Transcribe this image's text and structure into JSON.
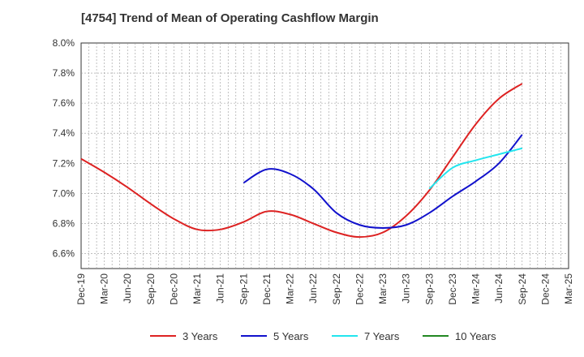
{
  "chart_data": {
    "type": "line",
    "title": "[4754]  Trend of Mean of Operating Cashflow Margin",
    "xlabel": "",
    "ylabel": "",
    "ylim": [
      6.5,
      8.0
    ],
    "y_ticks": [
      6.6,
      6.8,
      7.0,
      7.2,
      7.4,
      7.6,
      7.8,
      8.0
    ],
    "y_tick_labels": [
      "6.6%",
      "6.8%",
      "7.0%",
      "7.2%",
      "7.4%",
      "7.6%",
      "7.8%",
      "8.0%"
    ],
    "x_tick_labels": [
      "Dec-19",
      "Mar-20",
      "Jun-20",
      "Sep-20",
      "Dec-20",
      "Mar-21",
      "Jun-21",
      "Sep-21",
      "Dec-21",
      "Mar-22",
      "Jun-22",
      "Sep-22",
      "Dec-22",
      "Mar-23",
      "Jun-23",
      "Sep-23",
      "Dec-23",
      "Mar-24",
      "Jun-24",
      "Sep-24",
      "Dec-24",
      "Mar-25"
    ],
    "grid": true,
    "legend_position": "bottom",
    "series": [
      {
        "name": "3 Years",
        "color": "#dd2222",
        "start_index": 0,
        "values": [
          7.23,
          7.14,
          7.04,
          6.93,
          6.83,
          6.76,
          6.76,
          6.81,
          6.88,
          6.86,
          6.8,
          6.74,
          6.71,
          6.74,
          6.85,
          7.02,
          7.24,
          7.46,
          7.63,
          7.73
        ]
      },
      {
        "name": "5 Years",
        "color": "#1111cc",
        "start_index": 7,
        "values": [
          7.07,
          7.16,
          7.13,
          7.03,
          6.87,
          6.79,
          6.77,
          6.79,
          6.87,
          6.98,
          7.08,
          7.2,
          7.39
        ]
      },
      {
        "name": "7 Years",
        "color": "#22e5ee",
        "start_index": 15,
        "values": [
          7.03,
          7.17,
          7.22,
          7.26,
          7.3
        ]
      },
      {
        "name": "10 Years",
        "color": "#228822",
        "start_index": 0,
        "values": []
      }
    ]
  }
}
